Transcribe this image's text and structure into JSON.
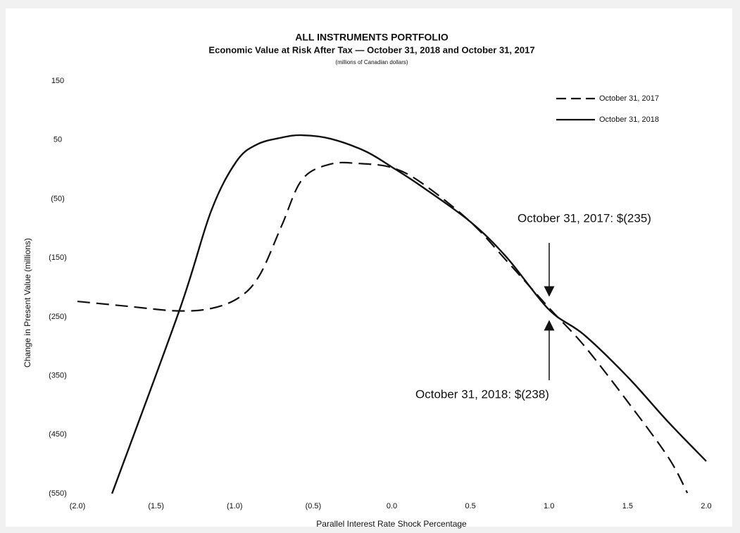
{
  "chart_data": {
    "type": "line",
    "title": "ALL INSTRUMENTS PORTFOLIO",
    "subtitle": "Economic Value at Risk After Tax — October 31, 2018 and October 31, 2017",
    "note": "(millions of Canadian dollars)",
    "x_label": "Parallel Interest Rate Shock Percentage",
    "y_label": "Change in Present Value (millions)",
    "xlim": [
      -2,
      2
    ],
    "xticks": [
      {
        "value": -2,
        "label": "(2.0)"
      },
      {
        "value": -1.5,
        "label": "(1.5)"
      },
      {
        "value": -1,
        "label": "(1.0)"
      },
      {
        "value": -0.5,
        "label": "(0.5)"
      },
      {
        "value": 0,
        "label": "0.0"
      },
      0.5,
      {
        "value": 1,
        "label": "1.0"
      },
      1.5,
      {
        "value": 2,
        "label": "2.0"
      }
    ],
    "ylim": [
      -550,
      150
    ],
    "yticks": [
      150,
      50,
      {
        "value": -50,
        "label": "(50)"
      },
      {
        "value": -150,
        "label": "(150)"
      },
      {
        "value": -250,
        "label": "(250)"
      },
      {
        "value": -350,
        "label": "(350)"
      },
      {
        "value": -450,
        "label": "(450)"
      },
      {
        "value": -550,
        "label": "(550)"
      }
    ],
    "grid": false,
    "legend": "upper right",
    "series": [
      {
        "name": "October 31, 2017",
        "color": "#111111",
        "dash": true,
        "x": [
          -2,
          -1.69,
          -1.37,
          -1.15,
          -0.97,
          -0.84,
          -0.7,
          -0.57,
          -0.39,
          -0.21,
          0,
          0.19,
          0.5,
          0.73,
          1,
          1.22,
          1.5,
          1.76,
          1.88
        ],
        "values": [
          -224,
          -232,
          -240,
          -236,
          -217,
          -179,
          -95,
          -17,
          9,
          10,
          3,
          -23,
          -89,
          -155,
          -235,
          -298,
          -394,
          -489,
          -549
        ]
      },
      {
        "name": "October 31, 2018",
        "color": "#111111",
        "dash": false,
        "x": [
          -1.78,
          -1.35,
          -1.15,
          -0.99,
          -0.86,
          -0.7,
          -0.57,
          -0.39,
          -0.17,
          0,
          0.19,
          0.5,
          0.73,
          1,
          1.22,
          1.5,
          1.76,
          2
        ],
        "values": [
          -550,
          -238,
          -71,
          13,
          42,
          54,
          58,
          52,
          31,
          4,
          -29,
          -89,
          -149,
          -238,
          -280,
          -352,
          -429,
          -495
        ]
      }
    ],
    "annotations": [
      "October 31, 2017: $(235)",
      "October 31, 2018: $(238)"
    ]
  }
}
